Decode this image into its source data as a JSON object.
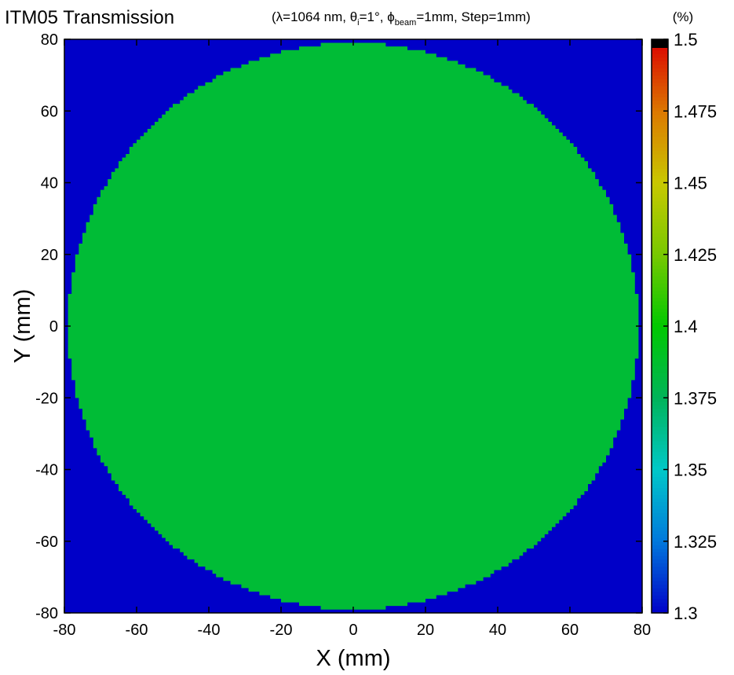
{
  "chart_data": {
    "type": "heatmap",
    "title": "ITM05 Transmission",
    "subtitle": {
      "before_theta": "(λ=1064 nm, ",
      "theta": "θ",
      "theta_sub": "i",
      "after_theta": "=1°, ",
      "phi": "ϕ",
      "phi_sub": "beam",
      "after_phi": "=1mm, Step=1mm)"
    },
    "xlabel": "X (mm)",
    "ylabel": "Y (mm)",
    "xlim": [
      -80,
      80
    ],
    "ylim": [
      -80,
      80
    ],
    "x_ticks": [
      "-80",
      "-60",
      "-40",
      "-20",
      "0",
      "20",
      "40",
      "60",
      "80"
    ],
    "y_ticks": [
      "-80",
      "-60",
      "-40",
      "-20",
      "0",
      "20",
      "40",
      "60",
      "80"
    ],
    "grid": false,
    "grid_step_mm": 1,
    "map": {
      "shape": "disc",
      "center": [
        0,
        0
      ],
      "radius_mm": 79,
      "value_inside": 1.385,
      "value_outside": 1.3
    },
    "colorbar": {
      "unit_label": "(%)",
      "range": [
        1.3,
        1.5
      ],
      "ticks": [
        "1.3",
        "1.325",
        "1.35",
        "1.375",
        "1.4",
        "1.425",
        "1.45",
        "1.475",
        "1.5"
      ],
      "colors": [
        "#0000c8",
        "#0078dc",
        "#00c8c8",
        "#00b45a",
        "#00c800",
        "#78c800",
        "#c8c800",
        "#dc7800",
        "#dc0000",
        "#000000"
      ]
    }
  }
}
